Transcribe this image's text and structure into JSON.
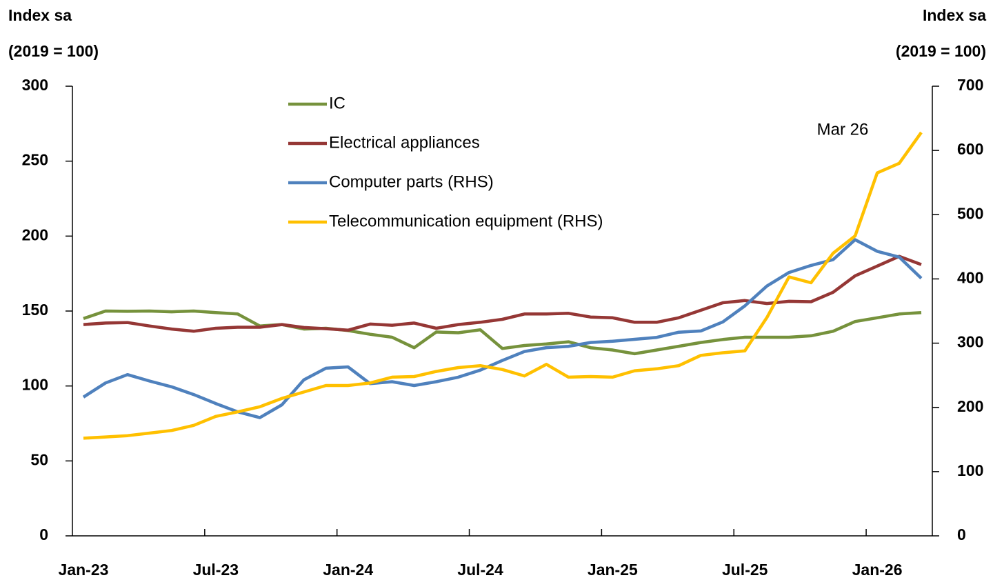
{
  "chart_data": {
    "type": "line",
    "y_label": [
      "Index sa",
      "(2019 = 100)"
    ],
    "y2_label": [
      "Index sa",
      "(2019 = 100)"
    ],
    "annotation": "Mar 26",
    "legend": "upper left",
    "categories": [
      "Jan-23",
      null,
      null,
      null,
      null,
      null,
      "Jul-23",
      null,
      null,
      null,
      null,
      null,
      "Jan-24",
      null,
      null,
      null,
      null,
      null,
      "Jul-24",
      null,
      null,
      null,
      null,
      null,
      "Jan-25",
      null,
      null,
      null,
      null,
      null,
      "Jul-25",
      null,
      null,
      null,
      null,
      null,
      "Jan-26",
      null,
      null
    ],
    "ylim": [
      0,
      300
    ],
    "yticks": [
      0,
      50,
      100,
      150,
      200,
      250,
      300
    ],
    "y2lim": [
      0,
      700
    ],
    "y2ticks": [
      0,
      100,
      200,
      300,
      400,
      500,
      600,
      700
    ],
    "series": [
      {
        "name": "IC",
        "color": "#76923c",
        "values": [
          145,
          150,
          149.8,
          150,
          149.5,
          150,
          149,
          148,
          140,
          141,
          138,
          138.5,
          137,
          134.5,
          132.5,
          125.5,
          136,
          135.5,
          137.5,
          125,
          127,
          128,
          129.5,
          125.5,
          124,
          121.5,
          124,
          126.5,
          129,
          131,
          132.5,
          132.5,
          132.5,
          133.5,
          136.5,
          143,
          145.5,
          148,
          149
        ]
      },
      {
        "name": "Electrical appliances",
        "color": "#953735",
        "values": [
          141,
          142,
          142.3,
          140,
          138,
          136.5,
          138.5,
          139.2,
          139.2,
          141,
          139,
          138.2,
          137.2,
          141.3,
          140.5,
          142,
          138.5,
          141,
          142.5,
          144.5,
          148,
          148,
          148.5,
          146,
          145.5,
          142.5,
          142.5,
          145.5,
          150.5,
          155.5,
          157,
          155,
          156.5,
          156.2,
          162.5,
          173.5,
          180,
          186.5,
          181
        ]
      },
      {
        "name": "Computer parts (RHS)",
        "color": "#4f81bd",
        "axis": "y2",
        "values": [
          216,
          238,
          251,
          241,
          232,
          220,
          206,
          193,
          184,
          204,
          243,
          261,
          263,
          237,
          240,
          234,
          240,
          247,
          258,
          273,
          287,
          293,
          295,
          301,
          303,
          306,
          309,
          317,
          319,
          333,
          358,
          389,
          410,
          421,
          430,
          461,
          443,
          434,
          401
        ]
      },
      {
        "name": "Telecommunication equipment (RHS)",
        "color": "#ffc000",
        "axis": "y2",
        "values": [
          152,
          154,
          156,
          160,
          164,
          172,
          186,
          193,
          201,
          214,
          224,
          234,
          234,
          238,
          247,
          248,
          256,
          262,
          265,
          259,
          249,
          267,
          247,
          248,
          247,
          257,
          260,
          265,
          281,
          285,
          288,
          340,
          403,
          394,
          440,
          467,
          565,
          580,
          628
        ]
      }
    ]
  }
}
